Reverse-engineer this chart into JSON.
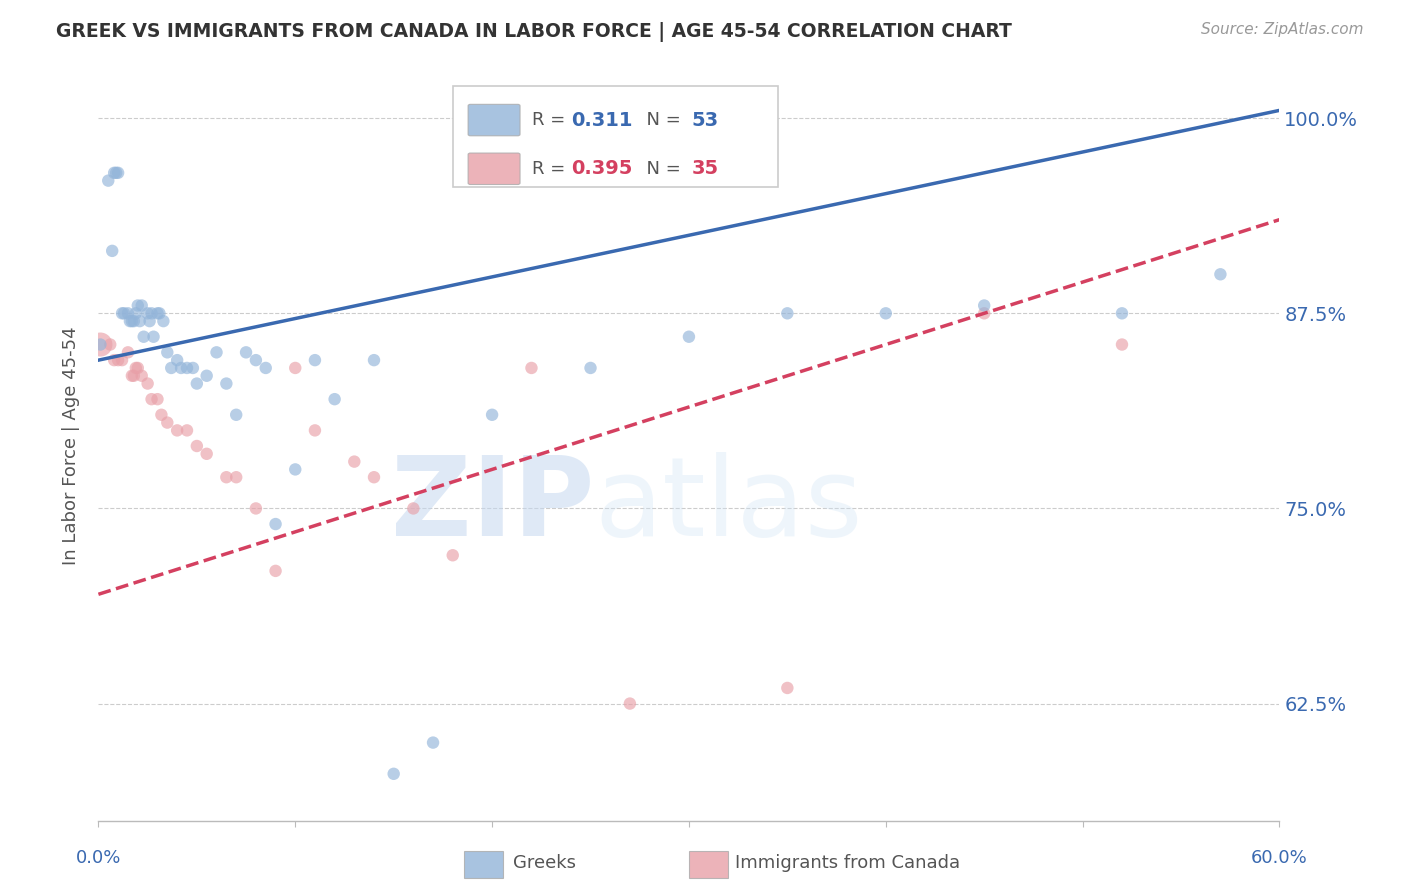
{
  "title": "GREEK VS IMMIGRANTS FROM CANADA IN LABOR FORCE | AGE 45-54 CORRELATION CHART",
  "source": "Source: ZipAtlas.com",
  "ylabel": "In Labor Force | Age 45-54",
  "ytick_labels": [
    "62.5%",
    "75.0%",
    "87.5%",
    "100.0%"
  ],
  "ytick_vals": [
    0.625,
    0.75,
    0.875,
    1.0
  ],
  "blue_color": "#92b4d9",
  "pink_color": "#e8a0a8",
  "blue_line_color": "#3a69b0",
  "pink_line_color": "#d44060",
  "watermark_zip": "ZIP",
  "watermark_atlas": "atlas",
  "background_color": "#ffffff",
  "grid_color": "#cccccc",
  "xmin": 0.0,
  "xmax": 0.6,
  "ymin": 0.55,
  "ymax": 1.03,
  "blue_scatter_x": [
    0.001,
    0.005,
    0.007,
    0.008,
    0.009,
    0.01,
    0.012,
    0.013,
    0.015,
    0.016,
    0.017,
    0.018,
    0.019,
    0.02,
    0.021,
    0.022,
    0.023,
    0.025,
    0.026,
    0.027,
    0.028,
    0.03,
    0.031,
    0.033,
    0.035,
    0.037,
    0.04,
    0.042,
    0.045,
    0.048,
    0.05,
    0.055,
    0.06,
    0.065,
    0.07,
    0.075,
    0.08,
    0.085,
    0.09,
    0.1,
    0.11,
    0.12,
    0.14,
    0.15,
    0.17,
    0.2,
    0.25,
    0.3,
    0.35,
    0.4,
    0.45,
    0.52,
    0.57
  ],
  "blue_scatter_y": [
    0.855,
    0.96,
    0.915,
    0.965,
    0.965,
    0.965,
    0.875,
    0.875,
    0.875,
    0.87,
    0.87,
    0.87,
    0.875,
    0.88,
    0.87,
    0.88,
    0.86,
    0.875,
    0.87,
    0.875,
    0.86,
    0.875,
    0.875,
    0.87,
    0.85,
    0.84,
    0.845,
    0.84,
    0.84,
    0.84,
    0.83,
    0.835,
    0.85,
    0.83,
    0.81,
    0.85,
    0.845,
    0.84,
    0.74,
    0.775,
    0.845,
    0.82,
    0.845,
    0.58,
    0.6,
    0.81,
    0.84,
    0.86,
    0.875,
    0.875,
    0.88,
    0.875,
    0.9
  ],
  "blue_scatter_s": [
    80,
    80,
    80,
    80,
    80,
    80,
    80,
    80,
    80,
    80,
    80,
    80,
    80,
    80,
    80,
    80,
    80,
    80,
    80,
    80,
    80,
    80,
    80,
    80,
    80,
    80,
    80,
    80,
    80,
    80,
    80,
    80,
    80,
    80,
    80,
    80,
    80,
    80,
    80,
    80,
    80,
    80,
    80,
    80,
    80,
    80,
    80,
    80,
    80,
    80,
    80,
    80,
    80
  ],
  "pink_scatter_x": [
    0.001,
    0.006,
    0.008,
    0.01,
    0.012,
    0.015,
    0.017,
    0.018,
    0.019,
    0.02,
    0.022,
    0.025,
    0.027,
    0.03,
    0.032,
    0.035,
    0.04,
    0.045,
    0.05,
    0.055,
    0.065,
    0.07,
    0.08,
    0.09,
    0.1,
    0.11,
    0.13,
    0.14,
    0.16,
    0.18,
    0.22,
    0.27,
    0.35,
    0.45,
    0.52
  ],
  "pink_scatter_y": [
    0.855,
    0.855,
    0.845,
    0.845,
    0.845,
    0.85,
    0.835,
    0.835,
    0.84,
    0.84,
    0.835,
    0.83,
    0.82,
    0.82,
    0.81,
    0.805,
    0.8,
    0.8,
    0.79,
    0.785,
    0.77,
    0.77,
    0.75,
    0.71,
    0.84,
    0.8,
    0.78,
    0.77,
    0.75,
    0.72,
    0.84,
    0.625,
    0.635,
    0.875,
    0.855
  ],
  "pink_scatter_s": [
    300,
    80,
    80,
    80,
    80,
    80,
    80,
    80,
    80,
    80,
    80,
    80,
    80,
    80,
    80,
    80,
    80,
    80,
    80,
    80,
    80,
    80,
    80,
    80,
    80,
    80,
    80,
    80,
    80,
    80,
    80,
    80,
    80,
    80,
    80
  ],
  "blue_line_x0": 0.0,
  "blue_line_x1": 0.6,
  "blue_line_y0": 0.845,
  "blue_line_y1": 1.005,
  "pink_line_x0": 0.0,
  "pink_line_x1": 0.6,
  "pink_line_y0": 0.695,
  "pink_line_y1": 0.935
}
